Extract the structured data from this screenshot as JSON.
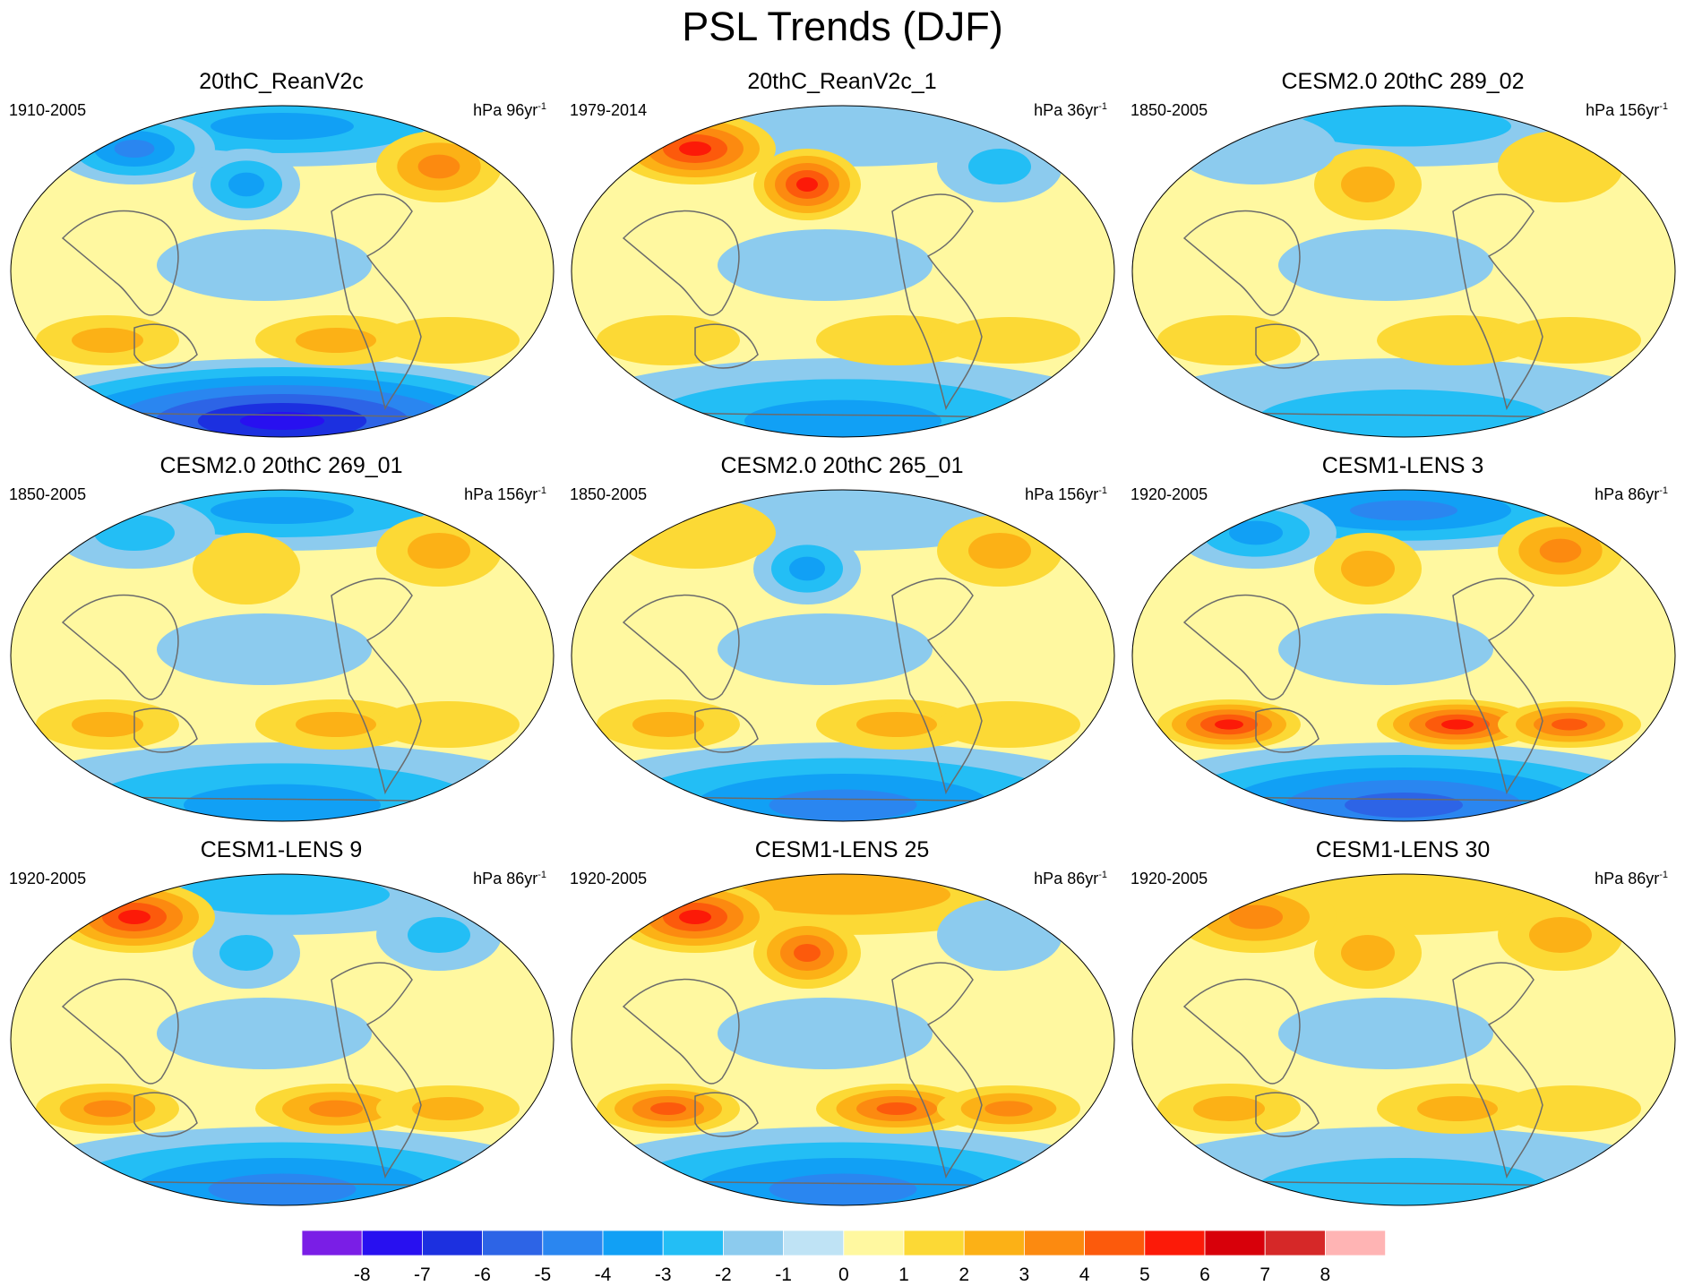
{
  "title": "PSL Trends (DJF)",
  "panels": [
    {
      "title": "20thC_ReanV2c",
      "period": "1910-2005",
      "units": "hPa 96yr",
      "units_exp": "-1",
      "pattern": {
        "sh": -7,
        "arctic": -3,
        "npac": -3,
        "natl": 3,
        "subtrop": 2,
        "eurasia": -4
      }
    },
    {
      "title": "20thC_ReanV2c_1",
      "period": "1979-2014",
      "units": "hPa 36yr",
      "units_exp": "-1",
      "pattern": {
        "sh": -3,
        "arctic": -1,
        "npac": 5,
        "natl": -2,
        "subtrop": 1,
        "eurasia": 5
      }
    },
    {
      "title": "CESM2.0 20thC 289_02",
      "period": "1850-2005",
      "units": "hPa 156yr",
      "units_exp": "-1",
      "pattern": {
        "sh": -2,
        "arctic": -2,
        "npac": 2,
        "natl": 1,
        "subtrop": 1,
        "eurasia": -1
      }
    },
    {
      "title": "CESM2.0 20thC 269_01",
      "period": "1850-2005",
      "units": "hPa 156yr",
      "units_exp": "-1",
      "pattern": {
        "sh": -3,
        "arctic": -3,
        "npac": 1,
        "natl": 2,
        "subtrop": 2,
        "eurasia": -2
      }
    },
    {
      "title": "CESM2.0 20thC 265_01",
      "period": "1850-2005",
      "units": "hPa 156yr",
      "units_exp": "-1",
      "pattern": {
        "sh": -4,
        "arctic": -1,
        "npac": -3,
        "natl": 2,
        "subtrop": 2,
        "eurasia": 1
      }
    },
    {
      "title": "CESM1-LENS 3",
      "period": "1920-2005",
      "units": "hPa 86yr",
      "units_exp": "-1",
      "pattern": {
        "sh": -5,
        "arctic": -4,
        "npac": 2,
        "natl": 3,
        "subtrop": 5,
        "eurasia": -3
      }
    },
    {
      "title": "CESM1-LENS 9",
      "period": "1920-2005",
      "units": "hPa 86yr",
      "units_exp": "-1",
      "pattern": {
        "sh": -4,
        "arctic": -2,
        "npac": -2,
        "natl": -2,
        "subtrop": 3,
        "eurasia": 5
      }
    },
    {
      "title": "CESM1-LENS 25",
      "period": "1920-2005",
      "units": "hPa 86yr",
      "units_exp": "-1",
      "pattern": {
        "sh": -4,
        "arctic": 2,
        "npac": 4,
        "natl": -1,
        "subtrop": 4,
        "eurasia": 5
      }
    },
    {
      "title": "CESM1-LENS 30",
      "period": "1920-2005",
      "units": "hPa 86yr",
      "units_exp": "-1",
      "pattern": {
        "sh": -2,
        "arctic": 1,
        "npac": 2,
        "natl": 2,
        "subtrop": 2,
        "eurasia": 3
      }
    }
  ],
  "colorbar": {
    "labels": [
      "-8",
      "-7",
      "-6",
      "-5",
      "-4",
      "-3",
      "-2",
      "-1",
      "0",
      "1",
      "2",
      "3",
      "4",
      "5",
      "6",
      "7",
      "8"
    ],
    "colors": [
      "#7a1ee6",
      "#2810f0",
      "#1c30e0",
      "#2d64e6",
      "#2a86f0",
      "#11a0f5",
      "#23bef5",
      "#8ccbee",
      "#bfe3f5",
      "#fff8a0",
      "#fcd935",
      "#fcb116",
      "#fc8a10",
      "#fc5a0c",
      "#fc1a08",
      "#d8000a",
      "#d62828",
      "#ffb4b4"
    ]
  }
}
